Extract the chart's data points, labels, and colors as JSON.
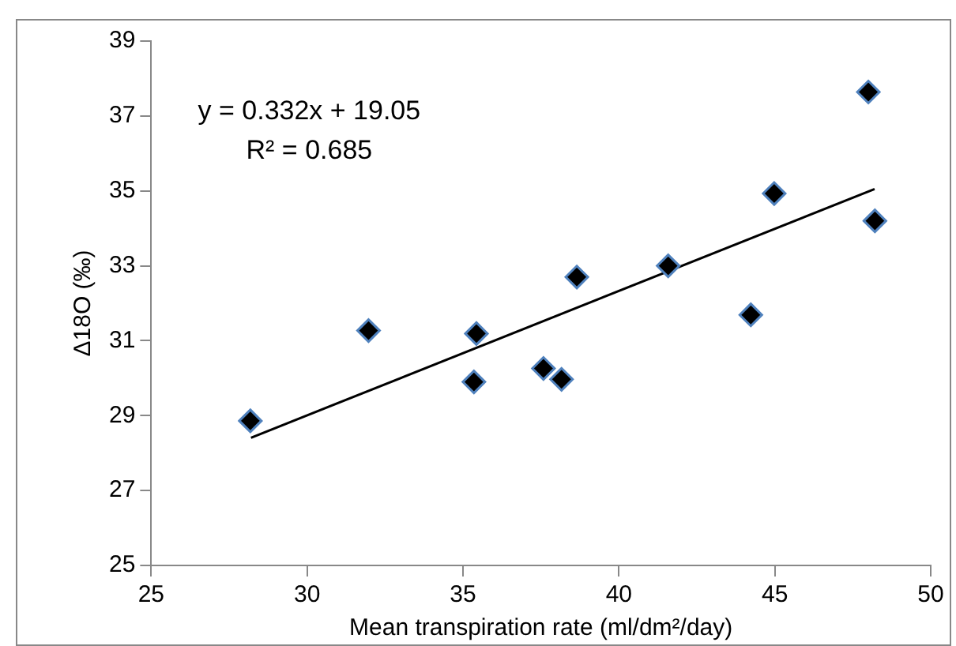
{
  "chart_data": {
    "type": "scatter",
    "xlabel": "Mean transpiration rate (ml/dm²/day)",
    "ylabel": "Δ18O (‰)",
    "annotations": [
      "y = 0.332x + 19.05",
      "R² = 0.685"
    ],
    "xlim": [
      25,
      50
    ],
    "xticks": [
      25,
      30,
      35,
      40,
      45,
      50
    ],
    "ylim": [
      25,
      39
    ],
    "yticks": [
      25,
      27,
      29,
      31,
      33,
      35,
      37,
      39
    ],
    "grid": false,
    "legend": false,
    "marker": "diamond",
    "series": [
      {
        "color": "#000000",
        "x": [
          28.18,
          31.97,
          35.43,
          35.35,
          37.58,
          38.16,
          38.65,
          41.58,
          44.23,
          44.98,
          48.0,
          48.21
        ],
        "values": [
          28.86,
          31.27,
          31.19,
          29.9,
          30.26,
          29.97,
          32.7,
          33.0,
          31.69,
          34.93,
          37.64,
          34.2
        ]
      },
      {
        "type": "line",
        "color": "#000000",
        "x": [
          28.2,
          48.2
        ],
        "values": [
          28.41,
          35.05
        ],
        "marker": "none",
        "line_style": "solid"
      }
    ]
  }
}
